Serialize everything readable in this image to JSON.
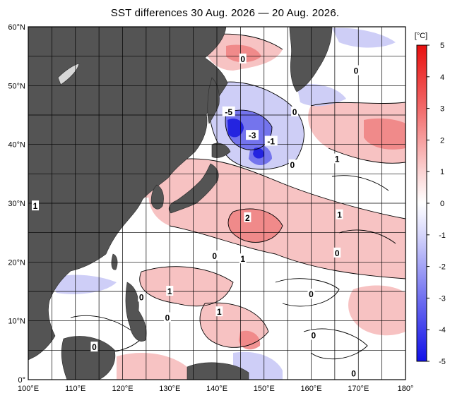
{
  "title": "SST differences 30 Aug. 2026 — 20 Aug. 2026.",
  "colorbar": {
    "unit": "[°C]",
    "ticks": [
      "5",
      "4",
      "3",
      "2",
      "1",
      "0",
      "-1",
      "-2",
      "-3",
      "-4",
      "-5"
    ]
  },
  "axes": {
    "lat_labels": [
      "60°N",
      "50°N",
      "40°N",
      "30°N",
      "20°N",
      "10°N",
      "0°"
    ],
    "lon_labels": [
      "100°E",
      "110°E",
      "120°E",
      "130°E",
      "140°E",
      "150°E",
      "160°E",
      "170°E",
      "180°"
    ]
  },
  "contour_labels": [
    {
      "text": "0",
      "lon": 145.5,
      "lat": 54.5
    },
    {
      "text": "0",
      "lon": 169.5,
      "lat": 52.5
    },
    {
      "text": "0",
      "lon": 156.5,
      "lat": 45.5
    },
    {
      "text": "-5",
      "lon": 142.5,
      "lat": 45.5
    },
    {
      "text": "-3",
      "lon": 147.5,
      "lat": 41.5
    },
    {
      "text": "-1",
      "lon": 151.5,
      "lat": 40.5
    },
    {
      "text": "0",
      "lon": 156.0,
      "lat": 36.5
    },
    {
      "text": "1",
      "lon": 165.5,
      "lat": 37.5
    },
    {
      "text": "2",
      "lon": 146.5,
      "lat": 27.5
    },
    {
      "text": "1",
      "lon": 166.0,
      "lat": 28.0
    },
    {
      "text": "1",
      "lon": 101.5,
      "lat": 29.5
    },
    {
      "text": "0",
      "lon": 139.5,
      "lat": 21.0
    },
    {
      "text": "1",
      "lon": 145.5,
      "lat": 20.5
    },
    {
      "text": "0",
      "lon": 165.5,
      "lat": 21.5
    },
    {
      "text": "1",
      "lon": 130.0,
      "lat": 15.0
    },
    {
      "text": "0",
      "lon": 124.0,
      "lat": 14.0
    },
    {
      "text": "0",
      "lon": 160.0,
      "lat": 14.5
    },
    {
      "text": "1",
      "lon": 140.5,
      "lat": 11.5
    },
    {
      "text": "0",
      "lon": 129.5,
      "lat": 10.5
    },
    {
      "text": "0",
      "lon": 160.5,
      "lat": 7.5
    },
    {
      "text": "0",
      "lon": 114.0,
      "lat": 5.5
    },
    {
      "text": "0",
      "lon": 169.0,
      "lat": 1.0
    }
  ]
}
